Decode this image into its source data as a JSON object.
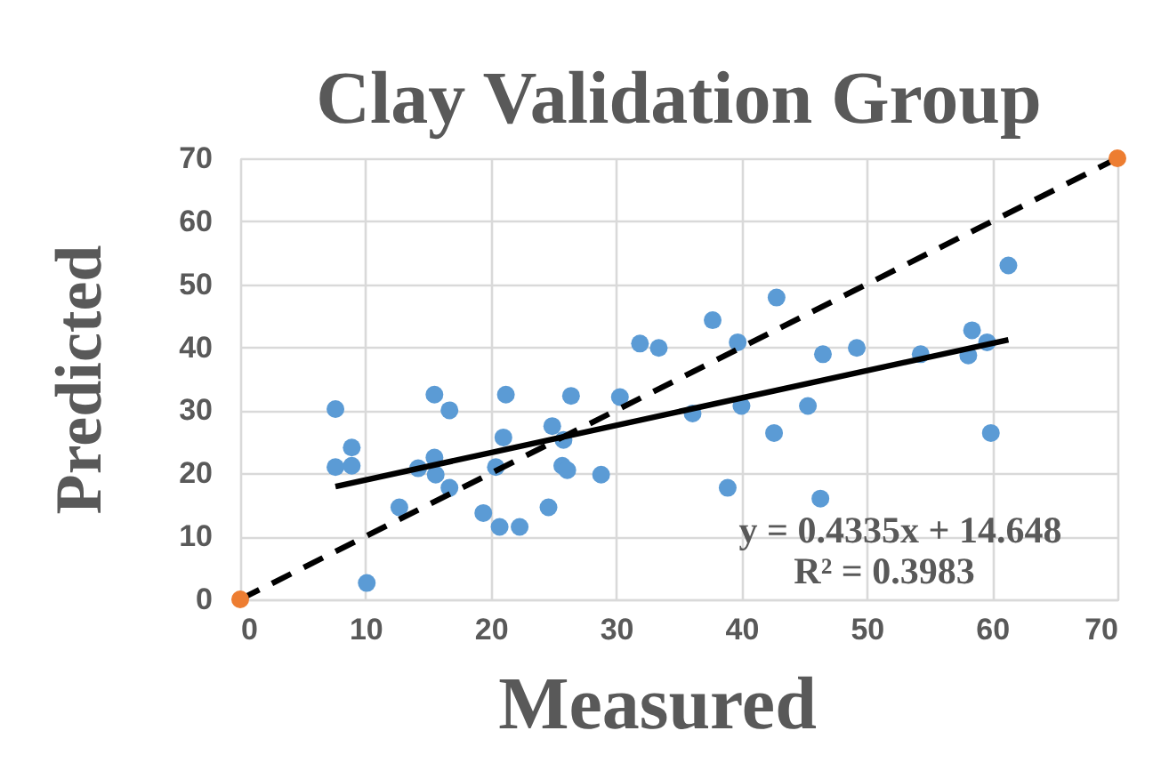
{
  "chart_data": {
    "type": "scatter",
    "title": "Clay Validation Group",
    "xlabel": "Measured",
    "ylabel": "Predicted",
    "xlim": [
      0,
      70
    ],
    "ylim": [
      0,
      70
    ],
    "xticks": [
      0,
      10,
      20,
      30,
      40,
      50,
      60,
      70
    ],
    "yticks": [
      0,
      10,
      20,
      30,
      40,
      50,
      60,
      70
    ],
    "grid": true,
    "series": [
      {
        "color": "#5b9bd5",
        "marker": "circle",
        "x": [
          7.6,
          7.6,
          8.9,
          8.9,
          10.1,
          12.7,
          14.2,
          15.5,
          15.5,
          15.6,
          16.7,
          16.7,
          19.4,
          20.4,
          20.7,
          21.0,
          21.2,
          22.3,
          24.6,
          24.9,
          25.8,
          25.7,
          26.1,
          26.4,
          28.8,
          30.3,
          31.9,
          33.4,
          36.1,
          37.7,
          39.7,
          40.0,
          38.9,
          42.8,
          42.6,
          45.3,
          46.5,
          46.3,
          49.2,
          54.3,
          58.4,
          58.1,
          59.6,
          59.9,
          61.3
        ],
        "values": [
          30.2,
          21.0,
          24.1,
          21.2,
          2.6,
          14.6,
          20.8,
          32.5,
          22.5,
          19.8,
          30.0,
          17.7,
          13.7,
          21.0,
          11.5,
          25.7,
          32.5,
          11.5,
          14.6,
          27.5,
          25.3,
          21.2,
          20.5,
          32.3,
          19.8,
          32.1,
          40.6,
          39.9,
          29.5,
          44.3,
          40.8,
          30.7,
          17.7,
          47.9,
          26.4,
          30.7,
          38.9,
          16.0,
          39.9,
          38.9,
          42.7,
          38.7,
          40.8,
          26.4,
          53.0
        ]
      },
      {
        "type": "line",
        "color": "#000000",
        "marker": "none",
        "x": [
          0,
          70
        ],
        "values": [
          0,
          70
        ],
        "line_style": "dashed"
      },
      {
        "color": "#ed7d31",
        "marker": "circle",
        "x": [
          0,
          70
        ],
        "values": [
          0,
          70
        ]
      },
      {
        "type": "line",
        "color": "#000000",
        "marker": "none",
        "x": [
          7.6,
          61.3
        ],
        "values": [
          17.9,
          41.2
        ],
        "line_style": "solid"
      }
    ],
    "annotations": [
      "y = 0.4335x + 14.648",
      "R² = 0.3983"
    ]
  }
}
